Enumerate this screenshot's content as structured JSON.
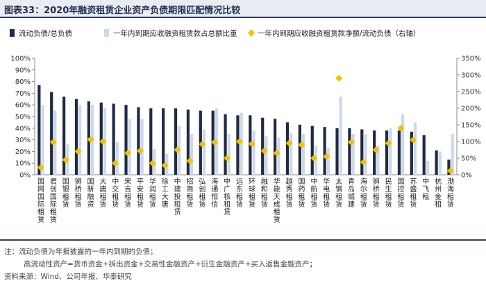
{
  "title": "图表33：2020年融资租赁企业资产负债期限匹配情况比较",
  "notes": {
    "line1": "注：流动负债为年报披露的一年内到期的负债；",
    "line2": "高流动性资产=货币资金+拆出资金+交易性金融资产+衍生金融资产+买入返售金融资产；",
    "line3": "资料来源：Wind、公司年报、华泰研究"
  },
  "chart_data": {
    "type": "bar",
    "categories": [
      "国网国际租赁",
      "君创国际租赁",
      "国银租赁",
      "狮桥租赁",
      "国新融资",
      "大唐租赁",
      "中交租赁",
      "宋吉租赁",
      "平安租赁",
      "华润租赁",
      "徐工大唐",
      "中建投租赁",
      "招商租赁",
      "弘创租赁",
      "海通恒信",
      "中广核租赁",
      "远东租赁",
      "环球租赁",
      "融和租赁",
      "华能天成租赁",
      "越秀租赁",
      "国药租赁",
      "中航租赁",
      "华电租赁",
      "太钢租赁",
      "青岛城建",
      "海尔租赁",
      "狮桥租赁",
      "民生租赁",
      "国控租赁",
      "苏盛租赁",
      "中飞租",
      "杭州金租",
      "渤海租赁"
    ],
    "series": [
      {
        "name": "流动负债/总负债",
        "axis": "left",
        "type": "bar",
        "color": "#1f2a44",
        "values": [
          77,
          71,
          67,
          65,
          63,
          62,
          61,
          60,
          58,
          57,
          57,
          57,
          56,
          55,
          55,
          52,
          51,
          51,
          49,
          48,
          45,
          43,
          42,
          41,
          40,
          40,
          39,
          38,
          38,
          38,
          37,
          34,
          21,
          13
        ]
      },
      {
        "name": "一年内到期应收融资租赁款占总额比重",
        "axis": "left",
        "type": "bar",
        "color": "#cdd9ea",
        "values": [
          60,
          55,
          26,
          60,
          60,
          57,
          28,
          48,
          48,
          22,
          18,
          42,
          35,
          39,
          57,
          35,
          53,
          38,
          33,
          32,
          36,
          35,
          25,
          23,
          67,
          35,
          35,
          25,
          40,
          52,
          45,
          12,
          20,
          35
        ]
      },
      {
        "name": "一年内到期应收融资租赁款净额/流动负债（右轴）",
        "axis": "right",
        "type": "scatter",
        "color": "#f2c200",
        "values": [
          22,
          98,
          45,
          70,
          106,
          100,
          35,
          65,
          72,
          35,
          28,
          75,
          42,
          92,
          98,
          50,
          100,
          93,
          72,
          65,
          95,
          90,
          50,
          55,
          290,
          98,
          38,
          75,
          95,
          140,
          105,
          null,
          null,
          12
        ]
      }
    ],
    "yleft": {
      "min": 0,
      "max": 100,
      "ticks": [
        "0%",
        "10%",
        "20%",
        "30%",
        "40%",
        "50%",
        "60%",
        "70%",
        "80%",
        "90%",
        "100%"
      ]
    },
    "yright": {
      "min": 0,
      "max": 350,
      "ticks": [
        "0%",
        "50%",
        "100%",
        "150%",
        "200%",
        "250%",
        "300%",
        "350%"
      ]
    },
    "legend_position": "top"
  }
}
